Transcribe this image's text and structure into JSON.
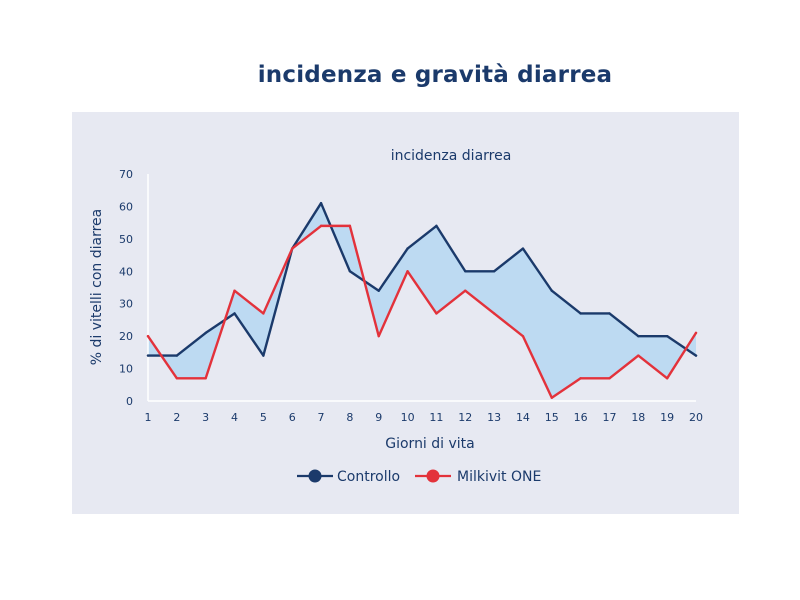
{
  "page": {
    "title": "incidenza e gravità diarrea"
  },
  "chart_data": {
    "type": "line",
    "title": "incidenza diarrea",
    "xlabel": "Giorni di vita",
    "ylabel": "% di vitelli con diarrea",
    "x": [
      1,
      2,
      3,
      4,
      5,
      6,
      7,
      8,
      9,
      10,
      11,
      12,
      13,
      14,
      15,
      16,
      17,
      18,
      19,
      20
    ],
    "x_ticks": [
      "1",
      "2",
      "3",
      "4",
      "5",
      "6",
      "7",
      "8",
      "9",
      "10",
      "11",
      "12",
      "13",
      "14",
      "15",
      "16",
      "17",
      "18",
      "19",
      "20"
    ],
    "y_ticks": [
      "0",
      "10",
      "20",
      "30",
      "40",
      "50",
      "60",
      "70"
    ],
    "ylim": [
      0,
      70
    ],
    "grid": false,
    "legend_position": "bottom-center",
    "series": [
      {
        "name": "Controllo",
        "color": "#1b3a6b",
        "values": [
          14,
          14,
          21,
          27,
          14,
          47,
          61,
          40,
          34,
          47,
          54,
          40,
          40,
          47,
          34,
          27,
          27,
          20,
          20,
          14
        ]
      },
      {
        "name": "Milkivit ONE",
        "color": "#e3323b",
        "values": [
          20,
          7,
          7,
          34,
          27,
          47,
          54,
          54,
          20,
          40,
          27,
          34,
          27,
          20,
          1,
          7,
          7,
          14,
          7,
          21
        ]
      }
    ],
    "shaded_area": {
      "color": "#b8d8f2",
      "description_between": "Controllo and Milkivit ONE"
    }
  }
}
